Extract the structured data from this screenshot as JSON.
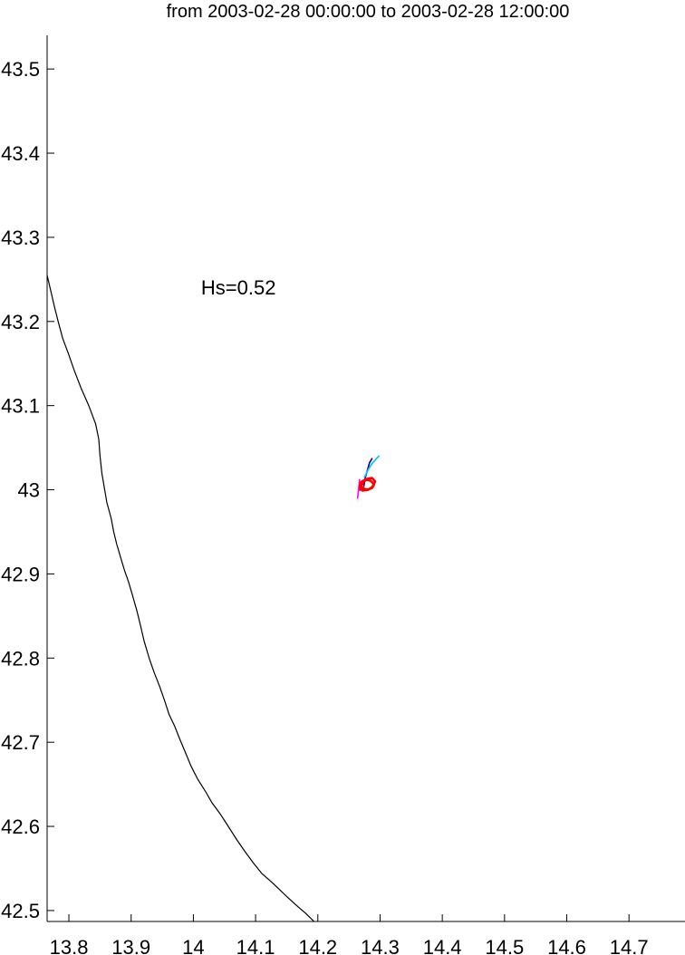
{
  "chart_data": {
    "type": "line",
    "title": "from 2003-02-28 00:00:00 to 2003-02-28 12:00:00",
    "xlabel": "",
    "ylabel": "",
    "xlim": [
      13.765,
      14.79
    ],
    "ylim": [
      42.487,
      43.54
    ],
    "x_ticks": [
      13.8,
      13.9,
      14.0,
      14.1,
      14.2,
      14.3,
      14.4,
      14.5,
      14.6,
      14.7
    ],
    "x_tick_labels": [
      "13.8",
      "13.9",
      "14",
      "14.1",
      "14.2",
      "14.3",
      "14.4",
      "14.5",
      "14.6",
      "14.7"
    ],
    "y_ticks": [
      42.5,
      42.6,
      42.7,
      42.8,
      42.9,
      43.0,
      43.1,
      43.2,
      43.3,
      43.4,
      43.5
    ],
    "y_tick_labels": [
      "42.5",
      "42.6",
      "42.7",
      "42.8",
      "42.9",
      "43",
      "43.1",
      "43.2",
      "43.3",
      "43.4",
      "43.5"
    ],
    "grid": false,
    "annotations": [
      {
        "text": "Hs=0.52",
        "x": 14.0725,
        "y": 43.232
      }
    ],
    "coastline": {
      "color": "#000000",
      "x": [
        13.765,
        13.771,
        13.777,
        13.783,
        13.79,
        13.799,
        13.809,
        13.82,
        13.832,
        13.843,
        13.848,
        13.85,
        13.853,
        13.857,
        13.861,
        13.868,
        13.872,
        13.877,
        13.883,
        13.889,
        13.896,
        13.902,
        13.909,
        13.915,
        13.921,
        13.929,
        13.937,
        13.946,
        13.954,
        13.961,
        13.97,
        13.978,
        13.986,
        13.996,
        14.007,
        14.019,
        14.03,
        14.043,
        14.056,
        14.069,
        14.083,
        14.096,
        14.11,
        14.124,
        14.137,
        14.151,
        14.166,
        14.18,
        14.194
      ],
      "y": [
        43.255,
        43.236,
        43.217,
        43.199,
        43.18,
        43.162,
        43.141,
        43.12,
        43.1,
        43.078,
        43.06,
        43.04,
        43.02,
        43.002,
        42.985,
        42.966,
        42.95,
        42.935,
        42.92,
        42.905,
        42.89,
        42.875,
        42.857,
        42.839,
        42.82,
        42.8,
        42.783,
        42.766,
        42.749,
        42.733,
        42.719,
        42.704,
        42.69,
        42.672,
        42.656,
        42.642,
        42.628,
        42.615,
        42.6,
        42.585,
        42.57,
        42.557,
        42.544,
        42.535,
        42.526,
        42.516,
        42.506,
        42.497,
        42.487
      ]
    },
    "series": [
      {
        "color": "#00008b",
        "x": [
          14.274,
          14.276,
          14.28,
          14.283,
          14.287
        ],
        "y": [
          43.004,
          43.014,
          43.024,
          43.032,
          43.037
        ]
      },
      {
        "color": "#00bfff",
        "x": [
          14.275,
          14.281,
          14.287,
          14.293,
          14.298
        ],
        "y": [
          43.015,
          43.024,
          43.031,
          43.036,
          43.04
        ]
      },
      {
        "color": "#ff00ff",
        "x": [
          14.264,
          14.265,
          14.266,
          14.267
        ],
        "y": [
          42.99,
          42.997,
          43.004,
          43.012
        ]
      },
      {
        "color": "#ff0000",
        "x": [
          14.268,
          14.272,
          14.279,
          14.287,
          14.292,
          14.289,
          14.281,
          14.272,
          14.267,
          14.269,
          14.276,
          14.284,
          14.29,
          14.287,
          14.279,
          14.272,
          14.269
        ],
        "y": [
          43.0,
          43.008,
          43.013,
          43.014,
          43.01,
          43.004,
          43.0,
          42.999,
          43.003,
          43.009,
          43.012,
          43.011,
          43.007,
          43.002,
          43.0,
          43.002,
          43.006
        ]
      }
    ]
  }
}
